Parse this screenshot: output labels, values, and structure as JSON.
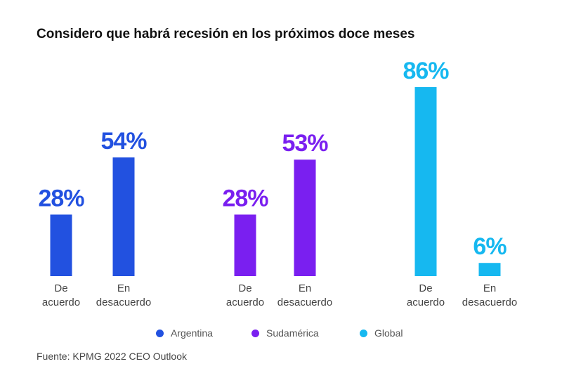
{
  "chart_data": {
    "type": "bar",
    "title": "Considero que habrá recesión en los próximos doce meses",
    "ylim": [
      0,
      100
    ],
    "groups": [
      {
        "name": "Argentina",
        "color": "#2251e0",
        "bars": [
          {
            "label_line1": "De",
            "label_line2": "acuerdo",
            "value": 28,
            "value_label": "28%"
          },
          {
            "label_line1": "En",
            "label_line2": "desacuerdo",
            "value": 54,
            "value_label": "54%"
          }
        ]
      },
      {
        "name": "Sudamérica",
        "color": "#7a1ff0",
        "bars": [
          {
            "label_line1": "De",
            "label_line2": "acuerdo",
            "value": 28,
            "value_label": "28%"
          },
          {
            "label_line1": "En",
            "label_line2": "desacuerdo",
            "value": 53,
            "value_label": "53%"
          }
        ]
      },
      {
        "name": "Global",
        "color": "#16b8f0",
        "bars": [
          {
            "label_line1": "De",
            "label_line2": "acuerdo",
            "value": 86,
            "value_label": "86%"
          },
          {
            "label_line1": "En",
            "label_line2": "desacuerdo",
            "value": 6,
            "value_label": "6%"
          }
        ]
      }
    ],
    "legend": [
      "Argentina",
      "Sudamérica",
      "Global"
    ],
    "source": "Fuente: KPMG 2022 CEO Outlook"
  }
}
